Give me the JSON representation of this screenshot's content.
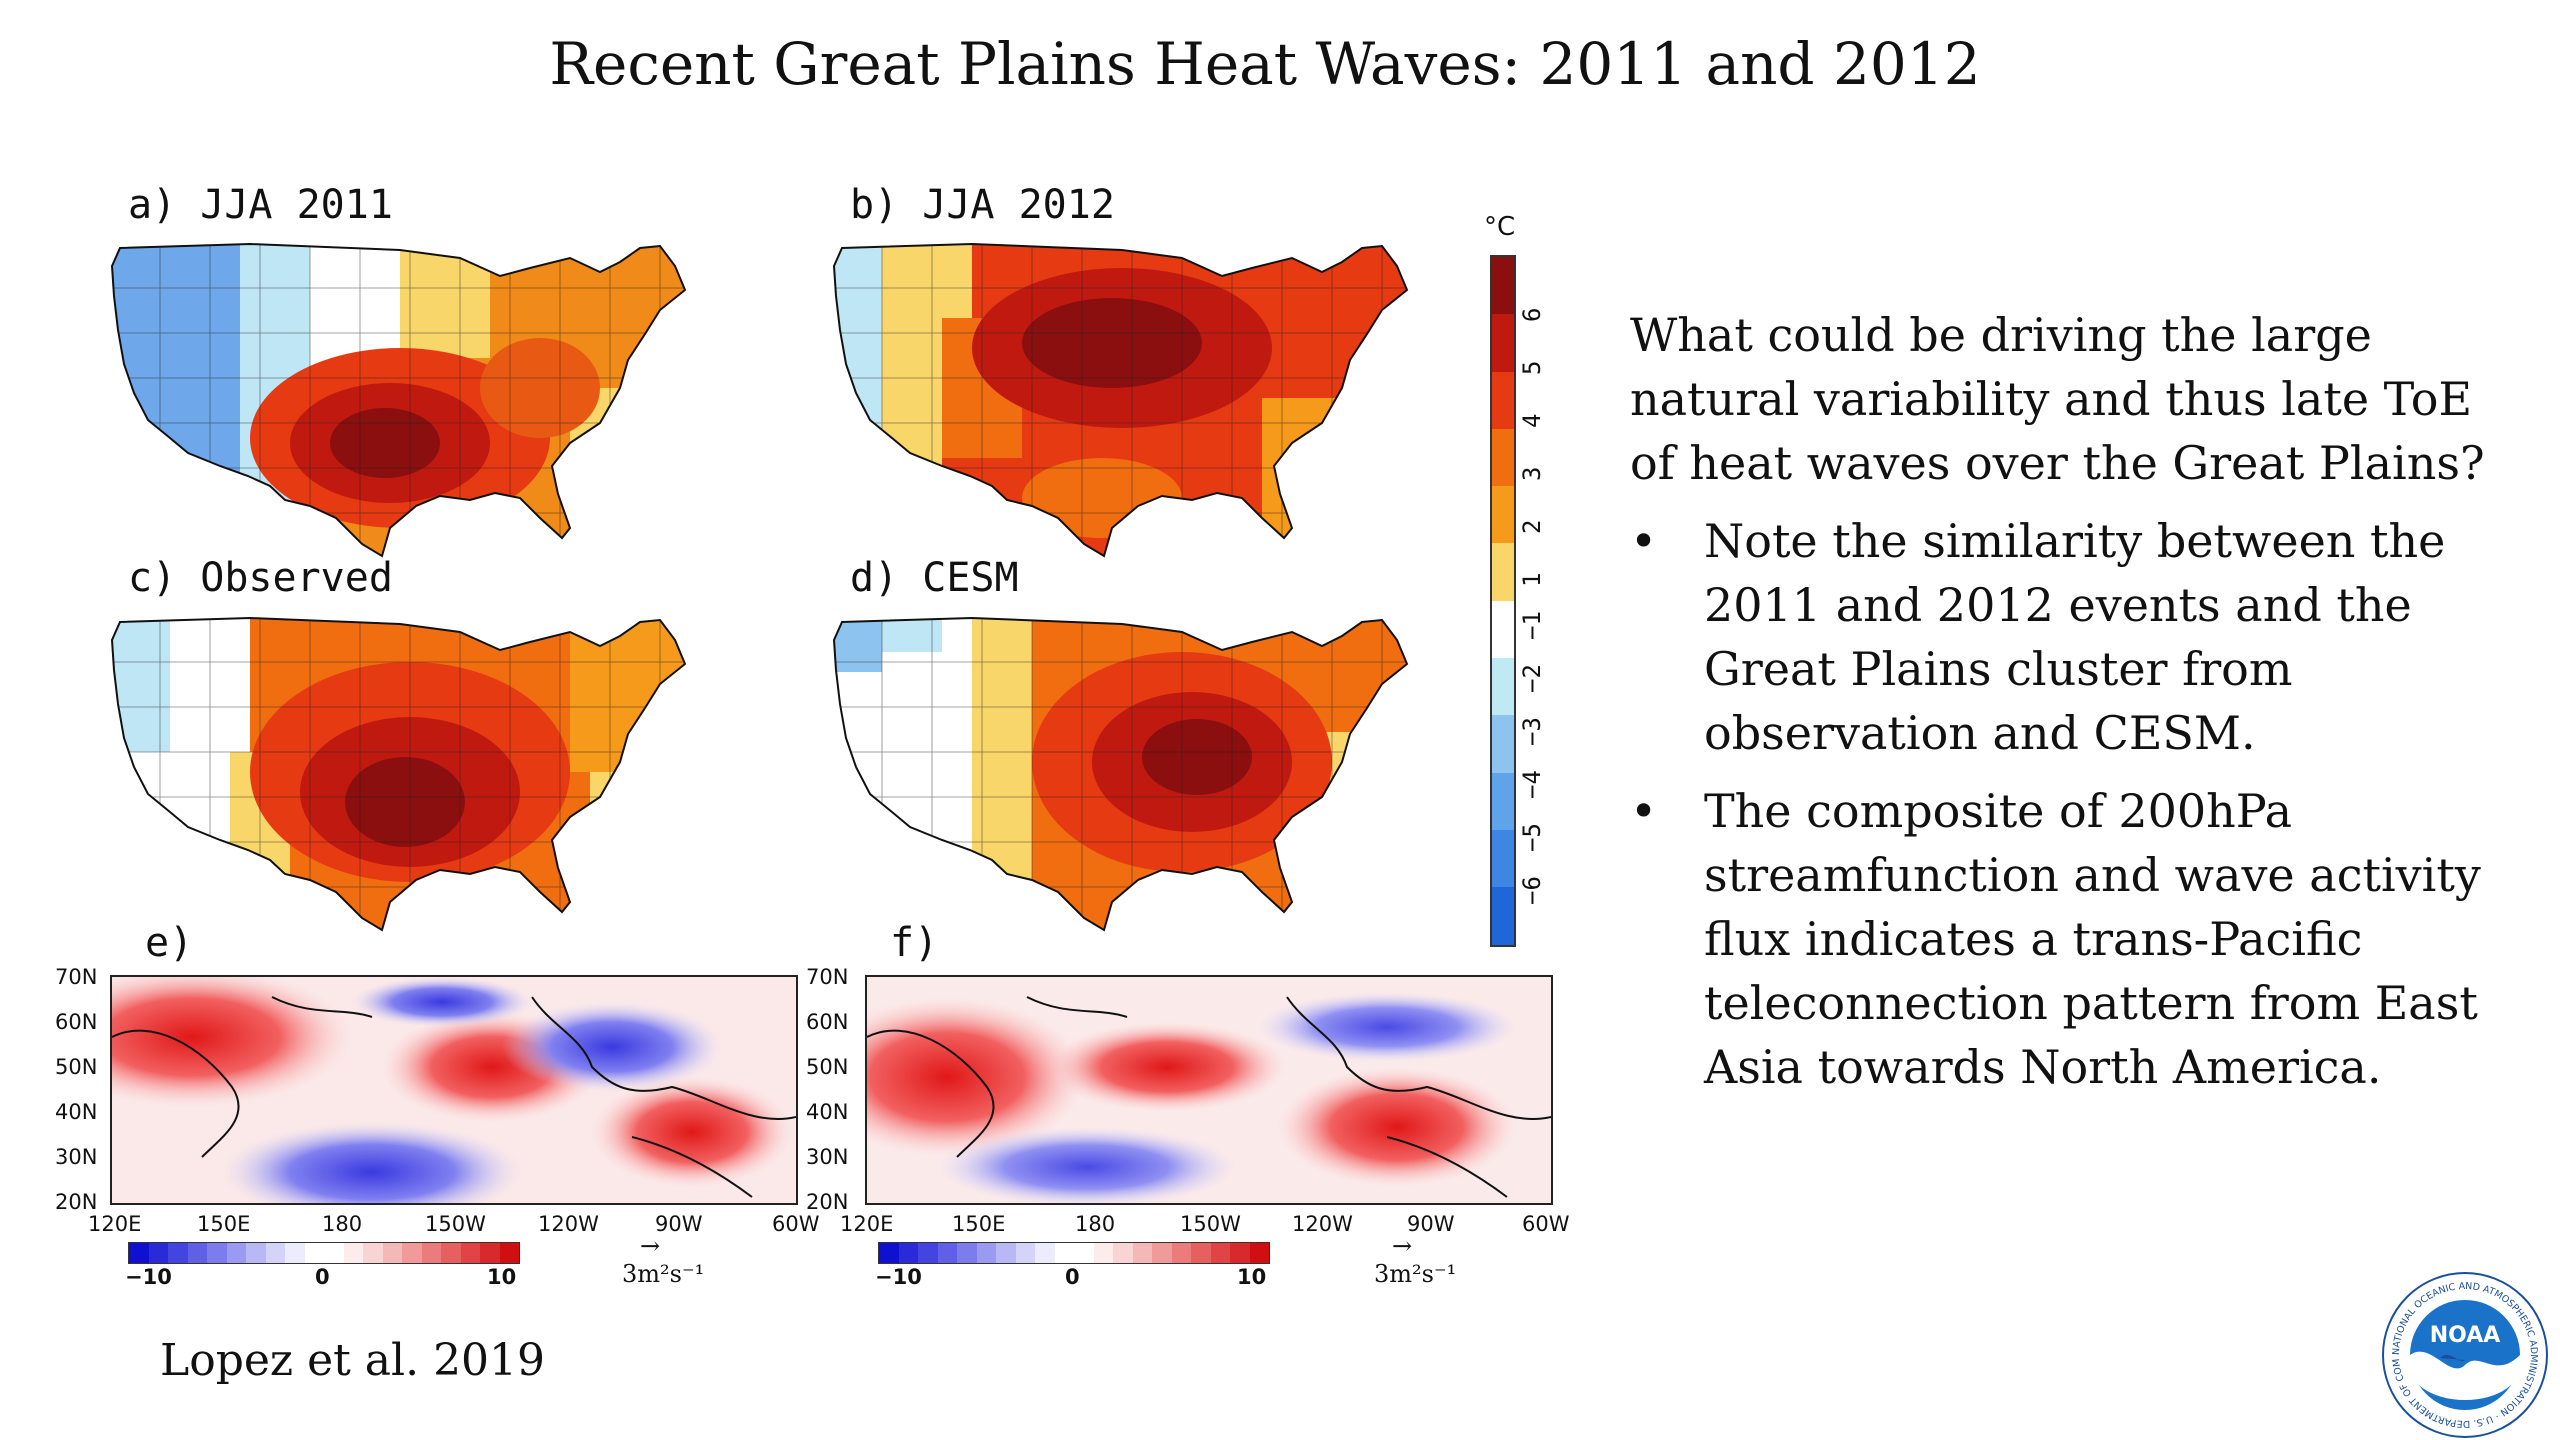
{
  "slide": {
    "title": "Recent Great Plains Heat Waves: 2011 and 2012",
    "panels": {
      "a": "a) JJA 2011",
      "b": "b) JJA 2012",
      "c": "c) Observed",
      "d": "d) CESM",
      "e": "e)",
      "f": "f)"
    },
    "temp_colorbar": {
      "unit": "°C",
      "ticks": [
        "6",
        "5",
        "4",
        "3",
        "2",
        "1",
        "−1",
        "−2",
        "−3",
        "−4",
        "−5",
        "−6"
      ],
      "colors": [
        "#8b0f0f",
        "#c01a10",
        "#e63a12",
        "#f06e10",
        "#f59a1a",
        "#f8d66a",
        "#ffffff",
        "#bfeaf3",
        "#8cc4ef",
        "#5fa4ea",
        "#3e86e4",
        "#1f66d8"
      ]
    },
    "lat_labels": [
      "70N",
      "60N",
      "50N",
      "40N",
      "30N",
      "20N"
    ],
    "lon_labels": [
      "120E",
      "150E",
      "180",
      "150W",
      "120W",
      "90W",
      "60W"
    ],
    "field_colorbar": {
      "labels": [
        "−10",
        "0",
        "10"
      ],
      "unit": "3m²s⁻¹",
      "arrow": "→"
    },
    "right_text": {
      "intro": "What could be driving the large natural variability and thus late ToE of heat waves over the Great Plains?",
      "bullets": [
        "Note the similarity between the 2011 and 2012 events and the Great Plains cluster from observation and CESM.",
        "The composite of 200hPa streamfunction and wave activity flux indicates a trans-Pacific teleconnection pattern from East Asia towards North America."
      ],
      "bullet_glyph": "•"
    },
    "citation": "Lopez et al. 2019",
    "logo": {
      "text": "NOAA",
      "ring_text": "NATIONAL OCEANIC AND ATMOSPHERIC ADMINISTRATION · U.S. DEPARTMENT OF COMMERCE"
    }
  }
}
